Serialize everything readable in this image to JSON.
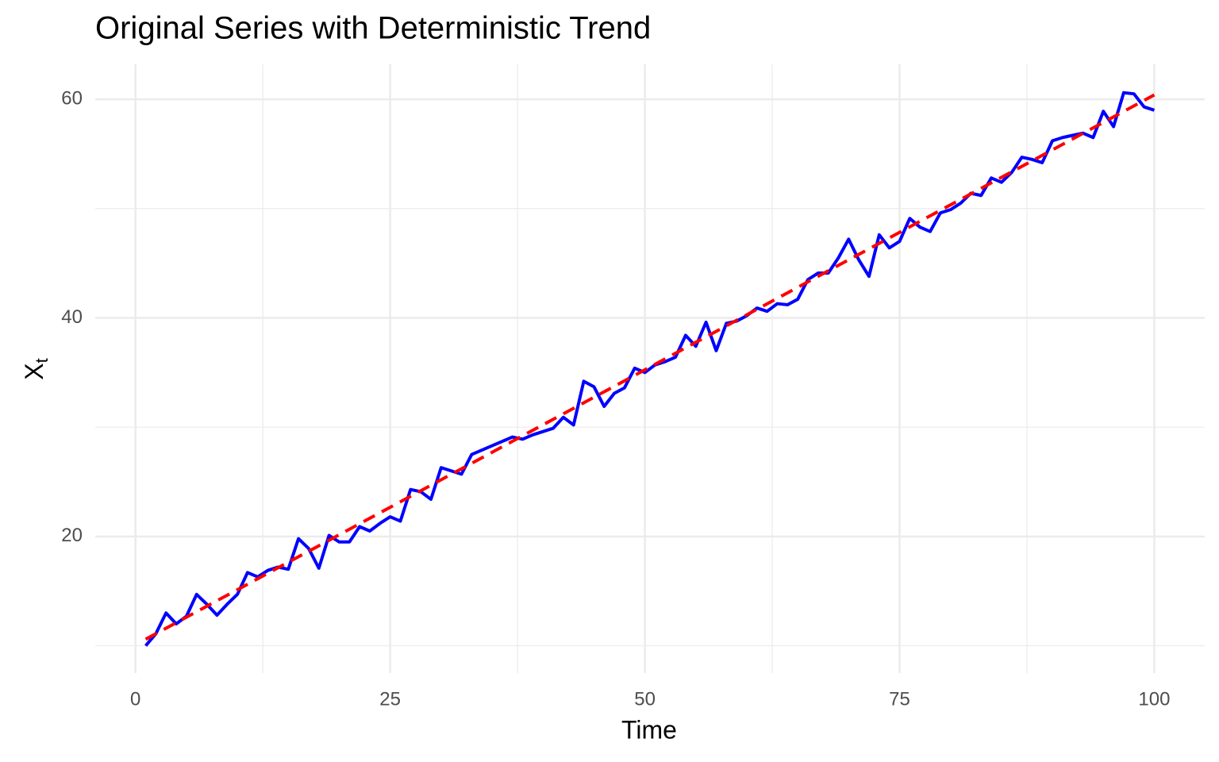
{
  "chart_data": {
    "type": "line",
    "title": "Original Series with Deterministic Trend",
    "xlabel": "Time",
    "ylabel": {
      "base": "X",
      "subscript": "t"
    },
    "x": [
      1,
      2,
      3,
      4,
      5,
      6,
      7,
      8,
      9,
      10,
      11,
      12,
      13,
      14,
      15,
      16,
      17,
      18,
      19,
      20,
      21,
      22,
      23,
      24,
      25,
      26,
      27,
      28,
      29,
      30,
      31,
      32,
      33,
      34,
      35,
      36,
      37,
      38,
      39,
      40,
      41,
      42,
      43,
      44,
      45,
      46,
      47,
      48,
      49,
      50,
      51,
      52,
      53,
      54,
      55,
      56,
      57,
      58,
      59,
      60,
      61,
      62,
      63,
      64,
      65,
      66,
      67,
      68,
      69,
      70,
      71,
      72,
      73,
      74,
      75,
      76,
      77,
      78,
      79,
      80,
      81,
      82,
      83,
      84,
      85,
      86,
      87,
      88,
      89,
      90,
      91,
      92,
      93,
      94,
      95,
      96,
      97,
      98,
      99,
      100
    ],
    "series": [
      {
        "color": "#0000ff",
        "dash": false,
        "values": [
          10.0,
          11.1,
          13.0,
          12.0,
          12.7,
          14.7,
          13.8,
          12.8,
          13.8,
          14.7,
          16.7,
          16.3,
          16.9,
          17.2,
          17.0,
          19.8,
          18.9,
          17.1,
          20.1,
          19.5,
          19.5,
          20.9,
          20.5,
          21.2,
          21.8,
          21.4,
          24.3,
          24.1,
          23.4,
          26.3,
          26.0,
          25.7,
          27.5,
          27.9,
          28.3,
          28.7,
          29.1,
          28.9,
          29.3,
          29.6,
          29.9,
          30.9,
          30.2,
          34.2,
          33.7,
          31.9,
          33.1,
          33.6,
          35.4,
          35.0,
          35.7,
          36.0,
          36.4,
          38.4,
          37.4,
          39.6,
          37.0,
          39.5,
          39.7,
          40.2,
          40.9,
          40.6,
          41.3,
          41.2,
          41.7,
          43.5,
          44.1,
          44.1,
          45.5,
          47.2,
          45.3,
          43.8,
          47.6,
          46.4,
          47.0,
          49.1,
          48.3,
          47.9,
          49.6,
          49.9,
          50.5,
          51.4,
          51.2,
          52.8,
          52.4,
          53.3,
          54.7,
          54.5,
          54.2,
          56.2,
          56.5,
          56.7,
          56.9,
          56.5,
          58.9,
          57.5,
          60.6,
          60.5,
          59.3,
          59.0
        ]
      },
      {
        "color": "#ff0000",
        "dash": true,
        "x": [
          1,
          100
        ],
        "values": [
          10.6,
          60.4
        ]
      }
    ],
    "xlim": [
      -3.95,
      104.95
    ],
    "ylim": [
      7.5,
      63.2
    ],
    "xticks": [
      0,
      25,
      50,
      75,
      100
    ],
    "yticks": [
      20,
      40,
      60
    ],
    "xminor": [
      12.5,
      37.5,
      62.5,
      87.5
    ],
    "yminor": [
      10,
      30,
      50
    ],
    "grid": true
  }
}
